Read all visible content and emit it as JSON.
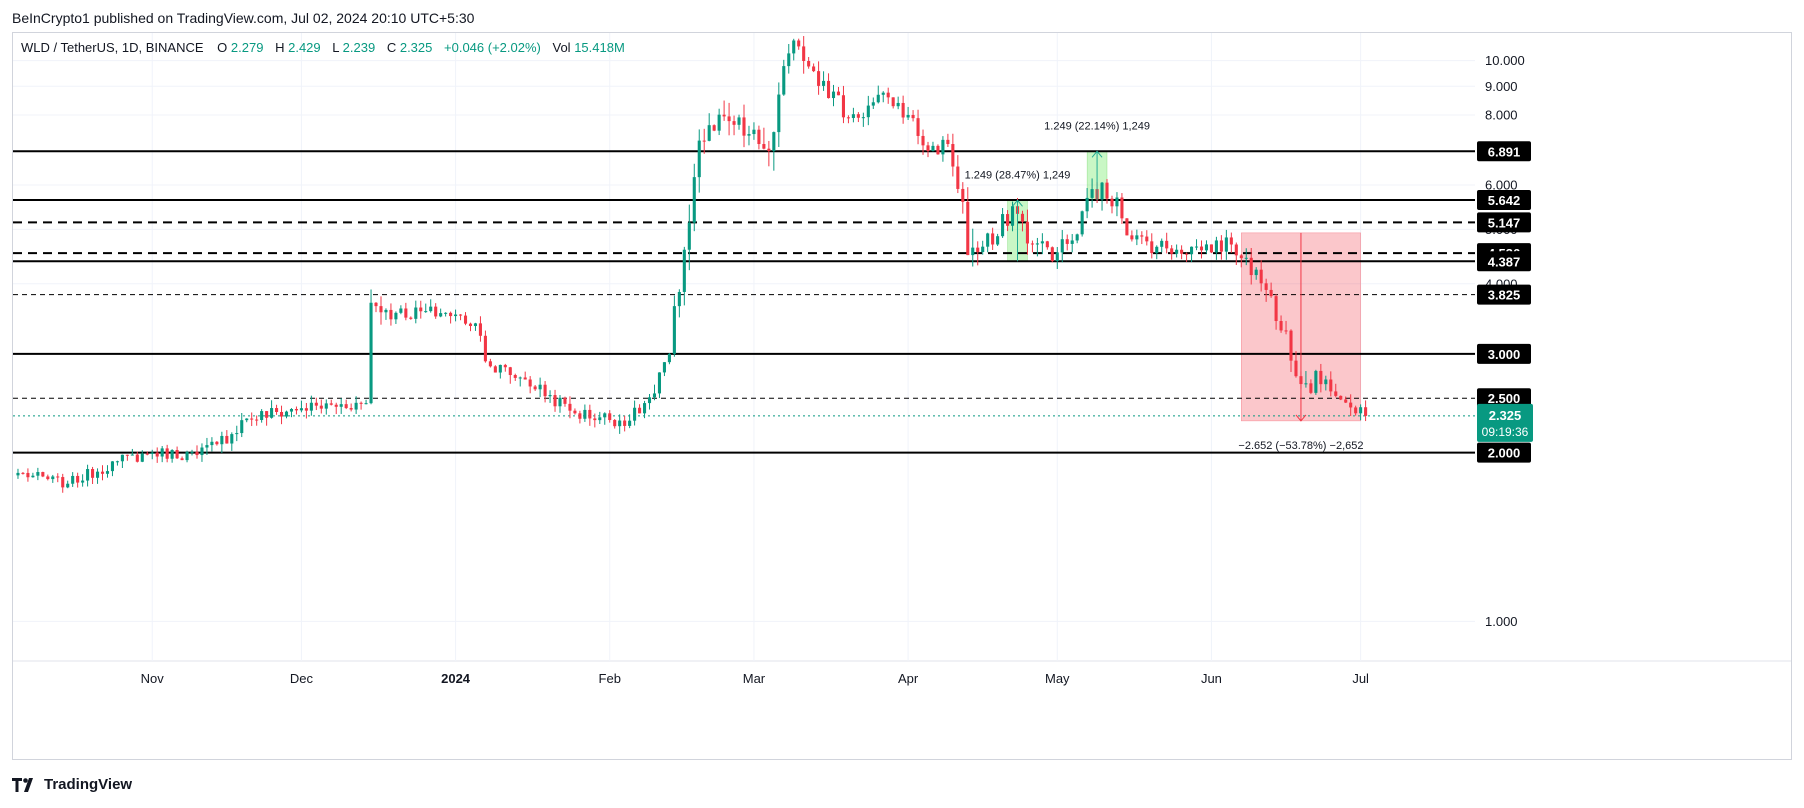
{
  "publisher_line": "BeInCrypto1 published on TradingView.com, Jul 02, 2024 20:10 UTC+5:30",
  "footer": {
    "brand": "TradingView",
    "logo_icon": "tradingview-logo-icon"
  },
  "legend": {
    "symbol": "WLD / TetherUS, 1D, BINANCE",
    "o_label": "O",
    "o": "2.279",
    "h_label": "H",
    "h": "2.429",
    "l_label": "L",
    "l": "2.239",
    "c_label": "C",
    "c": "2.325",
    "change": "+0.046 (+2.02%)",
    "vol_label": "Vol",
    "vol": "15.418M"
  },
  "colors": {
    "up": "#089981",
    "down": "#f23645",
    "accent_last": "#089981",
    "level_badge": "#000000"
  },
  "chart_data": {
    "type": "candlestick",
    "symbol": "WLD/USDT",
    "interval": "1D",
    "exchange": "BINANCE",
    "y_scale": "log",
    "y_range": [
      0.85,
      11.2
    ],
    "y_ticks": [
      "10.000",
      "9.000",
      "8.000",
      "6.000",
      "5.000",
      "4.000",
      "1.000"
    ],
    "x_range": [
      "2023-10-04",
      "2024-07-24"
    ],
    "x_ticks": [
      {
        "date": "2023-11-01",
        "label": "Nov",
        "bold": false
      },
      {
        "date": "2023-12-01",
        "label": "Dec",
        "bold": false
      },
      {
        "date": "2024-01-01",
        "label": "2024",
        "bold": true
      },
      {
        "date": "2024-02-01",
        "label": "Feb",
        "bold": false
      },
      {
        "date": "2024-03-01",
        "label": "Mar",
        "bold": false
      },
      {
        "date": "2024-04-01",
        "label": "Apr",
        "bold": false
      },
      {
        "date": "2024-05-01",
        "label": "May",
        "bold": false
      },
      {
        "date": "2024-06-01",
        "label": "Jun",
        "bold": false
      },
      {
        "date": "2024-07-01",
        "label": "Jul",
        "bold": false
      }
    ],
    "price_anchors": [
      [
        "2023-10-05",
        1.84,
        0.04
      ],
      [
        "2023-10-15",
        1.76,
        0.04
      ],
      [
        "2023-10-25",
        1.93,
        0.05
      ],
      [
        "2023-11-01",
        2.0,
        0.05
      ],
      [
        "2023-11-10",
        1.98,
        0.05
      ],
      [
        "2023-11-14",
        2.07,
        0.07
      ],
      [
        "2023-11-20",
        2.3,
        0.08
      ],
      [
        "2023-12-01",
        2.4,
        0.07
      ],
      [
        "2023-12-14",
        2.45,
        0.06
      ],
      [
        "2023-12-15",
        3.7,
        0.25
      ],
      [
        "2023-12-20",
        3.55,
        0.12
      ],
      [
        "2023-12-30",
        3.55,
        0.1
      ],
      [
        "2024-01-05",
        3.4,
        0.1
      ],
      [
        "2024-01-08",
        2.85,
        0.12
      ],
      [
        "2024-01-15",
        2.7,
        0.08
      ],
      [
        "2024-01-25",
        2.35,
        0.07
      ],
      [
        "2024-02-05",
        2.28,
        0.07
      ],
      [
        "2024-02-10",
        2.55,
        0.09
      ],
      [
        "2024-02-13",
        3.0,
        0.15
      ],
      [
        "2024-02-16",
        4.6,
        0.3
      ],
      [
        "2024-02-19",
        7.2,
        0.5
      ],
      [
        "2024-02-25",
        7.8,
        0.45
      ],
      [
        "2024-03-02",
        7.1,
        0.4
      ],
      [
        "2024-03-04",
        6.9,
        0.5
      ],
      [
        "2024-03-08",
        10.3,
        0.6
      ],
      [
        "2024-03-10",
        10.6,
        0.5
      ],
      [
        "2024-03-15",
        9.2,
        0.5
      ],
      [
        "2024-03-20",
        7.9,
        0.4
      ],
      [
        "2024-03-28",
        8.6,
        0.3
      ],
      [
        "2024-04-01",
        8.0,
        0.3
      ],
      [
        "2024-04-05",
        6.9,
        0.25
      ],
      [
        "2024-04-09",
        7.1,
        0.25
      ],
      [
        "2024-04-12",
        5.6,
        0.4
      ],
      [
        "2024-04-13",
        4.5,
        0.5
      ],
      [
        "2024-04-18",
        4.7,
        0.25
      ],
      [
        "2024-04-22",
        5.5,
        0.25
      ],
      [
        "2024-04-26",
        4.7,
        0.25
      ],
      [
        "2024-05-01",
        4.55,
        0.2
      ],
      [
        "2024-05-05",
        4.9,
        0.25
      ],
      [
        "2024-05-08",
        5.9,
        0.3
      ],
      [
        "2024-05-13",
        5.7,
        0.3
      ],
      [
        "2024-05-16",
        4.8,
        0.2
      ],
      [
        "2024-05-25",
        4.6,
        0.15
      ],
      [
        "2024-06-05",
        4.7,
        0.15
      ],
      [
        "2024-06-08",
        4.45,
        0.2
      ],
      [
        "2024-06-12",
        3.9,
        0.18
      ],
      [
        "2024-06-16",
        3.3,
        0.15
      ],
      [
        "2024-06-19",
        2.65,
        0.15
      ],
      [
        "2024-06-24",
        2.7,
        0.1
      ],
      [
        "2024-06-30",
        2.35,
        0.08
      ],
      [
        "2024-07-02",
        2.325,
        0.07
      ]
    ],
    "levels": [
      {
        "price": 6.891,
        "label": "6.891",
        "style": "solid",
        "width": 2
      },
      {
        "price": 5.642,
        "label": "5.642",
        "style": "solid",
        "width": 2
      },
      {
        "price": 5.147,
        "label": "5.147",
        "style": "dashed",
        "width": 2
      },
      {
        "price": 4.536,
        "label": "4.536",
        "style": "dashed",
        "width": 2
      },
      {
        "price": 4.387,
        "label": "4.387",
        "style": "solid",
        "width": 2
      },
      {
        "price": 3.825,
        "label": "3.825",
        "style": "dashed-thin",
        "width": 1
      },
      {
        "price": 3.0,
        "label": "3.000",
        "style": "solid",
        "width": 2
      },
      {
        "price": 2.5,
        "label": "2.500",
        "style": "dashed-thin",
        "width": 1
      },
      {
        "price": 2.0,
        "label": "2.000",
        "style": "solid",
        "width": 2
      }
    ],
    "last_price": {
      "price": 2.325,
      "label": "2.325",
      "countdown": "09:19:36"
    },
    "measures": [
      {
        "from_date": "2024-04-21",
        "to_date": "2024-04-25",
        "from": 4.387,
        "to": 5.636,
        "label": "1.249 (28.47%) 1,249",
        "direction": "up"
      },
      {
        "from_date": "2024-05-07",
        "to_date": "2024-05-11",
        "from": 5.642,
        "to": 6.891,
        "label": "1.249 (22.14%) 1,249",
        "direction": "up"
      },
      {
        "from_date": "2024-06-07",
        "to_date": "2024-07-01",
        "from": 4.93,
        "to": 2.278,
        "label": "−2.652 (−53.78%) −2,652",
        "direction": "down"
      }
    ]
  }
}
